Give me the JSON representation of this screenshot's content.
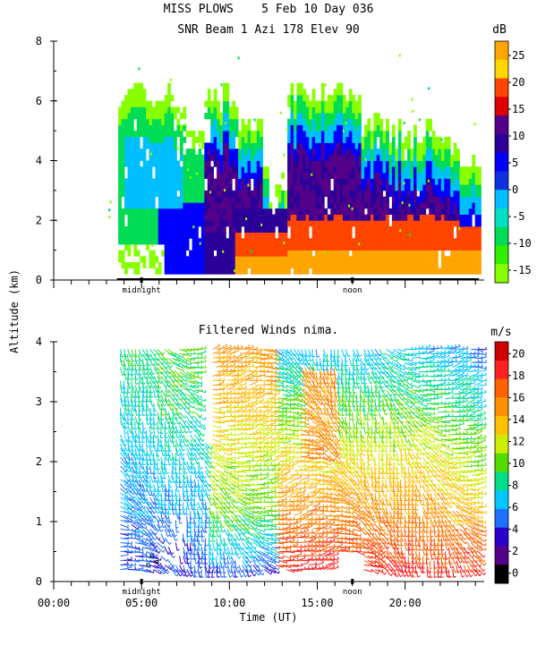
{
  "chart_data": [
    {
      "type": "heatmap",
      "title": "MISS PLOWS    5 Feb 10 Day 036",
      "subtitle": "SNR Beam 1 Azi 178 Elev 90",
      "xlabel": "Time (UT)",
      "ylabel": "Altitude (km)",
      "xlim": [
        0,
        24.5
      ],
      "ylim": [
        0,
        8
      ],
      "yticks": [
        "0",
        "2",
        "4",
        "6",
        "8"
      ],
      "time_markers": [
        "midnight",
        "noon"
      ],
      "colorbar": {
        "unit": "dB",
        "ticks": [
          "25",
          "20",
          "15",
          "10",
          "5",
          "0",
          "-5",
          "-10",
          "-15"
        ],
        "colors": [
          "#ffa500",
          "#ffd700",
          "#ff4500",
          "#dd0000",
          "#550088",
          "#2a0099",
          "#0000ff",
          "#1030e0",
          "#00bfff",
          "#00e0c0",
          "#00dd55",
          "#33ee00",
          "#88ff00"
        ]
      }
    },
    {
      "type": "heatmap",
      "title": "Filtered Winds nima.",
      "xlabel": "Time (UT)",
      "ylabel": "Altitude (km)",
      "xlim": [
        0,
        24.5
      ],
      "ylim": [
        0,
        4
      ],
      "yticks": [
        "0",
        "1",
        "2",
        "3",
        "4"
      ],
      "xticks": [
        "00:00",
        "05:00",
        "10:00",
        "15:00",
        "20:00"
      ],
      "time_markers": [
        "midnight",
        "noon"
      ],
      "colorbar": {
        "unit": "m/s",
        "ticks": [
          "20",
          "18",
          "16",
          "14",
          "12",
          "10",
          "8",
          "6",
          "4",
          "2",
          "0"
        ],
        "colors": [
          "#cc0000",
          "#ff2020",
          "#ff6000",
          "#ff9000",
          "#ffc000",
          "#ccee00",
          "#55dd00",
          "#00dd88",
          "#00c8ff",
          "#2070ff",
          "#2a00cc",
          "#550088",
          "#000000"
        ]
      }
    }
  ]
}
